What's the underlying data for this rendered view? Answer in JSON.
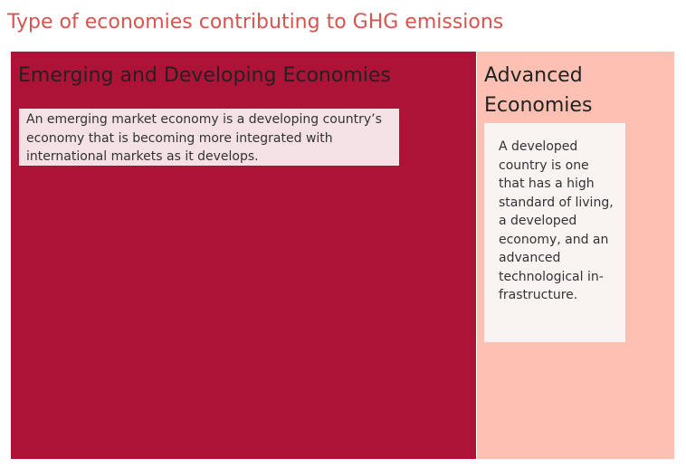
{
  "title": "Type of economies contributing to GHG emissions",
  "colors": {
    "title": "#d9534f",
    "emerging": "#ad1336",
    "advanced": "#fdc0b2",
    "emerging_note_bg": "#f3e1e5",
    "advanced_note_bg": "#f9f3f1"
  },
  "chart_data": {
    "type": "treemap",
    "title": "Type of economies contributing to GHG emissions",
    "tiles": [
      {
        "key": "emerging",
        "label": "Emerging and Developing Economies",
        "share": 0.7,
        "color": "#ad1336",
        "annotation": "An emerging market economy is a developing country’s economy that is becoming more integrated with international markets as it develops."
      },
      {
        "key": "advanced",
        "label": "Advanced Economies",
        "share": 0.3,
        "color": "#fdc0b2",
        "annotation": "A developed country is one that has a high standard of living, a developed economy, and an advanced technological in-frastructure."
      }
    ]
  }
}
